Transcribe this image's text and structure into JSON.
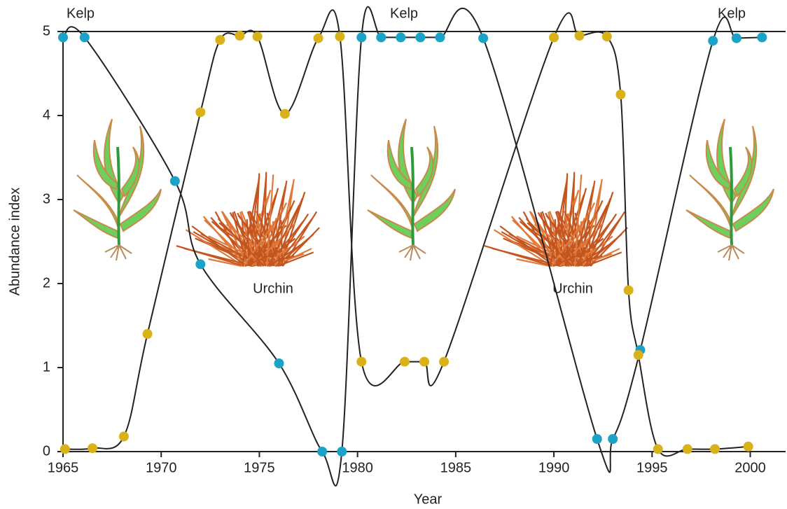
{
  "chart_data": {
    "type": "line",
    "x_label": "Year",
    "y_label": "Abundance index",
    "annotations": [
      "Kelp",
      "Kelp",
      "Kelp",
      "Urchin",
      "Urchin"
    ],
    "xlim": [
      1965,
      2001.8
    ],
    "ylim": [
      0,
      5
    ],
    "xticks": [
      1965,
      1970,
      1975,
      1980,
      1985,
      1990,
      1995,
      2000
    ],
    "yticks": [
      0,
      1,
      2,
      3,
      4,
      5
    ],
    "line_color": "#222222",
    "series": [
      {
        "color": "#1ca2c7",
        "x": [
          1965,
          1966.1,
          1970.7,
          1972,
          1976,
          1978.2,
          1979.2,
          1980.2,
          1981.2,
          1982.2,
          1983.2,
          1984.2,
          1986.4,
          1992.2,
          1993,
          1994.4,
          1998.1,
          1999.3,
          2000.6
        ],
        "values": [
          4.93,
          4.93,
          3.22,
          2.23,
          1.05,
          0,
          0,
          4.93,
          4.93,
          4.93,
          4.93,
          4.93,
          4.92,
          0.15,
          0.15,
          1.21,
          4.89,
          4.92,
          4.93
        ]
      },
      {
        "color": "#d8b218",
        "x": [
          1965.1,
          1966.5,
          1968.1,
          1969.3,
          1972,
          1973,
          1974,
          1974.9,
          1976.3,
          1978,
          1979.1,
          1980.2,
          1982.4,
          1983.4,
          1984.4,
          1990,
          1991.3,
          1992.7,
          1993.4,
          1993.8,
          1994.3,
          1995.3,
          1996.8,
          1998.2,
          1999.9
        ],
        "values": [
          0.03,
          0.04,
          0.18,
          1.4,
          4.04,
          4.9,
          4.95,
          4.94,
          4.02,
          4.92,
          4.94,
          1.07,
          1.07,
          1.07,
          1.07,
          4.93,
          4.95,
          4.94,
          4.25,
          1.92,
          1.15,
          0.03,
          0.03,
          0.03,
          0.06
        ]
      }
    ]
  }
}
